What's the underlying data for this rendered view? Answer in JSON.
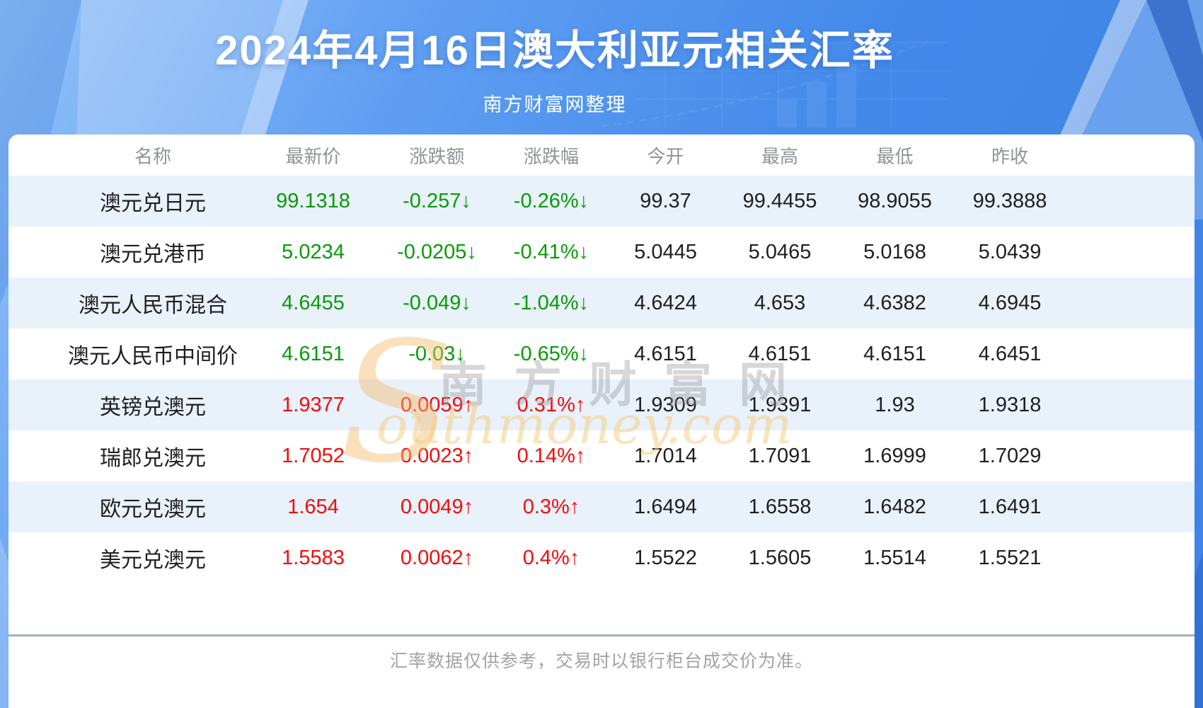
{
  "header": {
    "title": "2024年4月16日澳大利亚元相关汇率",
    "subtitle": "南方财富网整理"
  },
  "watermark": {
    "initial": "S",
    "cn_text": "南方财富网",
    "en_text": "outhmoney.com"
  },
  "footer": {
    "note": "汇率数据仅供参考，交易时以银行柜台成交价为准。"
  },
  "colors": {
    "up_red": "#f40b0b",
    "down_green": "#089b08",
    "value_text": "#1f1f1f",
    "header_text": "#8f9499",
    "alt_row_bg": "#e9f1fb",
    "divider": "#9fb1c0",
    "footer_text": "#a3a3a3",
    "banner_blue": "#4289ea"
  },
  "chart_data": {
    "type": "table",
    "title": "2024年4月16日澳大利亚元相关汇率",
    "columns": [
      "名称",
      "最新价",
      "涨跌额",
      "涨跌幅",
      "今开",
      "最高",
      "最低",
      "昨收"
    ],
    "rows": [
      [
        "澳元兑日元",
        "99.1318",
        "-0.257↓",
        "-0.26%↓",
        "99.37",
        "99.4455",
        "98.9055",
        "99.3888"
      ],
      [
        "澳元兑港币",
        "5.0234",
        "-0.0205↓",
        "-0.41%↓",
        "5.0445",
        "5.0465",
        "5.0168",
        "5.0439"
      ],
      [
        "澳元人民币混合",
        "4.6455",
        "-0.049↓",
        "-1.04%↓",
        "4.6424",
        "4.653",
        "4.6382",
        "4.6945"
      ],
      [
        "澳元人民币中间价",
        "4.6151",
        "-0.03↓",
        "-0.65%↓",
        "4.6151",
        "4.6151",
        "4.6151",
        "4.6451"
      ],
      [
        "英镑兑澳元",
        "1.9377",
        "0.0059↑",
        "0.31%↑",
        "1.9309",
        "1.9391",
        "1.93",
        "1.9318"
      ],
      [
        "瑞郎兑澳元",
        "1.7052",
        "0.0023↑",
        "0.14%↑",
        "1.7014",
        "1.7091",
        "1.6999",
        "1.7029"
      ],
      [
        "欧元兑澳元",
        "1.654",
        "0.0049↑",
        "0.3%↑",
        "1.6494",
        "1.6558",
        "1.6482",
        "1.6491"
      ],
      [
        "美元兑澳元",
        "1.5583",
        "0.0062↑",
        "0.4%↑",
        "1.5522",
        "1.5605",
        "1.5514",
        "1.5521"
      ]
    ]
  }
}
